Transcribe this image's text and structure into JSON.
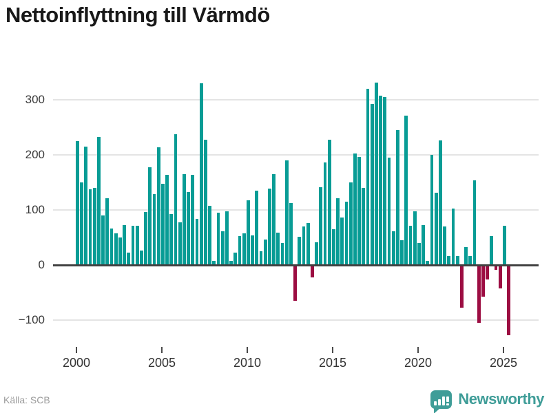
{
  "header": {
    "title": "Nettoinflyttning till Värmdö"
  },
  "footer": {
    "source_label": "Källa: SCB",
    "brand_name": "Newsworthy"
  },
  "colors": {
    "bar_positive": "#089c95",
    "bar_negative": "#9c0d42",
    "brand_teal": "#3f9d98",
    "gridline": "#e4e4e4",
    "zero_line": "#414141",
    "title_text": "#191919",
    "axis_text": "#3a3a3a",
    "source_text": "#9b9b9b"
  },
  "chart_data": {
    "type": "bar",
    "title": "Nettoinflyttning till Värmdö",
    "frequency": "quarterly",
    "start_period": "2000 Q1",
    "end_period": "2025 Q2",
    "yticks": [
      300,
      200,
      100,
      0,
      -100
    ],
    "xticks": [
      2000,
      2005,
      2010,
      2015,
      2020,
      2025
    ],
    "ylim": [
      -140,
      350
    ],
    "grid": true,
    "legend": "none",
    "values": [
      225,
      150,
      215,
      137,
      140,
      232,
      90,
      121,
      66,
      57,
      50,
      73,
      23,
      71,
      71,
      26,
      96,
      178,
      129,
      214,
      148,
      164,
      93,
      237,
      77,
      165,
      133,
      164,
      84,
      330,
      228,
      108,
      8,
      95,
      61,
      97,
      7,
      23,
      52,
      58,
      118,
      54,
      135,
      25,
      46,
      139,
      165,
      59,
      40,
      190,
      112,
      -65,
      51,
      70,
      76,
      -22,
      41,
      141,
      186,
      227,
      65,
      121,
      86,
      115,
      150,
      203,
      196,
      140,
      320,
      292,
      331,
      307,
      305,
      195,
      61,
      245,
      45,
      271,
      71,
      97,
      40,
      73,
      7,
      200,
      131,
      226,
      70,
      16,
      103,
      16,
      -78,
      33,
      16,
      154,
      -105,
      -57,
      -26,
      52,
      -9,
      -42,
      71,
      -127
    ]
  }
}
